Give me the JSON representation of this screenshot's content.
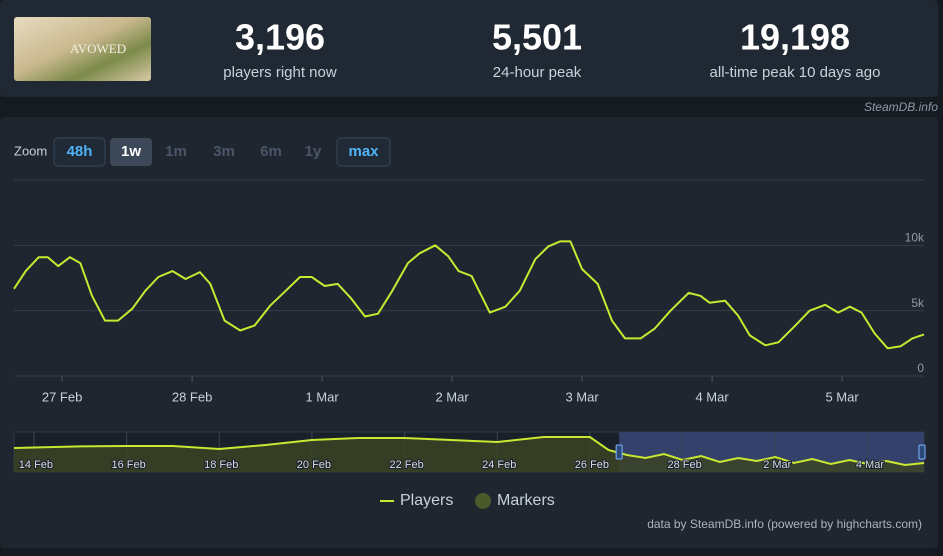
{
  "header": {
    "thumbnail_text": "AVOWED",
    "stats": [
      {
        "value": "3,196",
        "label": "players right now"
      },
      {
        "value": "5,501",
        "label": "24-hour peak"
      },
      {
        "value": "19,198",
        "label": "all-time peak 10 days ago"
      }
    ],
    "source": "SteamDB.info"
  },
  "zoom": {
    "label": "Zoom",
    "buttons": [
      "48h",
      "1w",
      "1m",
      "3m",
      "6m",
      "1y",
      "max"
    ]
  },
  "chart_data": {
    "type": "line",
    "x": [
      -0.37,
      -0.28,
      -0.18,
      -0.11,
      -0.03,
      0.06,
      0.14,
      0.23,
      0.33,
      0.43,
      0.54,
      0.64,
      0.74,
      0.85,
      0.95,
      1.06,
      1.14,
      1.25,
      1.37,
      1.48,
      1.6,
      1.72,
      1.83,
      1.92,
      2.02,
      2.12,
      2.22,
      2.33,
      2.43,
      2.54,
      2.66,
      2.75,
      2.87,
      2.97,
      3.05,
      3.15,
      3.29,
      3.41,
      3.52,
      3.64,
      3.74,
      3.83,
      3.91,
      4.0,
      4.12,
      4.23,
      4.33,
      4.45,
      4.56,
      4.68,
      4.82,
      4.91,
      4.98,
      5.1,
      5.2,
      5.29,
      5.41,
      5.51,
      5.64,
      5.75,
      5.87,
      5.97,
      6.06,
      6.15,
      6.25,
      6.35,
      6.45,
      6.54,
      6.63
    ],
    "series": [
      {
        "name": "Players",
        "color": "#c9e831",
        "values": [
          6670,
          8030,
          9090,
          9090,
          8410,
          9090,
          8640,
          6140,
          4240,
          4240,
          5150,
          6520,
          7580,
          8030,
          7420,
          7950,
          7050,
          4240,
          3480,
          3860,
          5380,
          6520,
          7580,
          7580,
          6890,
          7050,
          5980,
          4550,
          4770,
          6520,
          8640,
          9390,
          10000,
          9170,
          8030,
          7650,
          4850,
          5300,
          6520,
          8940,
          9920,
          10300,
          10300,
          8180,
          7050,
          4240,
          2880,
          2880,
          3640,
          5000,
          6360,
          6140,
          5610,
          5760,
          4620,
          3110,
          2350,
          2580,
          3860,
          5000,
          5450,
          4850,
          5300,
          4850,
          3260,
          2120,
          2270,
          2880,
          3180
        ]
      }
    ],
    "markers_legend": {
      "name": "Markers",
      "color": "#4a5a2a"
    },
    "xlim": [
      -0.37,
      6.63
    ],
    "xticks": [
      {
        "value": 0,
        "label": "27 Feb"
      },
      {
        "value": 1,
        "label": "28 Feb"
      },
      {
        "value": 2,
        "label": "1 Mar"
      },
      {
        "value": 3,
        "label": "2 Mar"
      },
      {
        "value": 4,
        "label": "3 Mar"
      },
      {
        "value": 5,
        "label": "4 Mar"
      },
      {
        "value": 6,
        "label": "5 Mar"
      }
    ],
    "ylim": [
      0,
      15000
    ],
    "yticks": [
      0,
      {
        "value": 5000,
        "label": "5k"
      },
      {
        "value": 10000,
        "label": "10k"
      }
    ],
    "grid": true,
    "navigator": {
      "x": [
        -13.43,
        -12,
        -11,
        -10,
        -9,
        -8,
        -7,
        -6,
        -5,
        -4,
        -3,
        -2,
        -1,
        -0.6,
        -0.2,
        0.2,
        0.6,
        1,
        1.4,
        1.8,
        2.2,
        2.6,
        3,
        3.4,
        3.8,
        4.2,
        4.6,
        5,
        5.4,
        5.8,
        6.21
      ],
      "values": [
        12000,
        12800,
        13000,
        13000,
        11500,
        13500,
        16000,
        17000,
        17000,
        16000,
        15000,
        17500,
        17500,
        11000,
        8500,
        7000,
        9000,
        6000,
        8000,
        5000,
        7000,
        5500,
        7500,
        4500,
        6500,
        4000,
        6000,
        4000,
        5500,
        3500,
        4500
      ],
      "xlim": [
        -13.43,
        6.21
      ],
      "ylim": [
        0,
        20000
      ],
      "xticks": [
        {
          "value": -13,
          "label": "14 Feb"
        },
        {
          "value": -11,
          "label": "16 Feb"
        },
        {
          "value": -9,
          "label": "18 Feb"
        },
        {
          "value": -7,
          "label": "20 Feb"
        },
        {
          "value": -5,
          "label": "22 Feb"
        },
        {
          "value": -3,
          "label": "24 Feb"
        },
        {
          "value": -1,
          "label": "26 Feb"
        },
        {
          "value": 1,
          "label": "28 Feb"
        },
        {
          "value": 3,
          "label": "2 Mar"
        },
        {
          "value": 5,
          "label": "4 Mar"
        }
      ]
    },
    "credit": "data by SteamDB.info (powered by highcharts.com)"
  }
}
